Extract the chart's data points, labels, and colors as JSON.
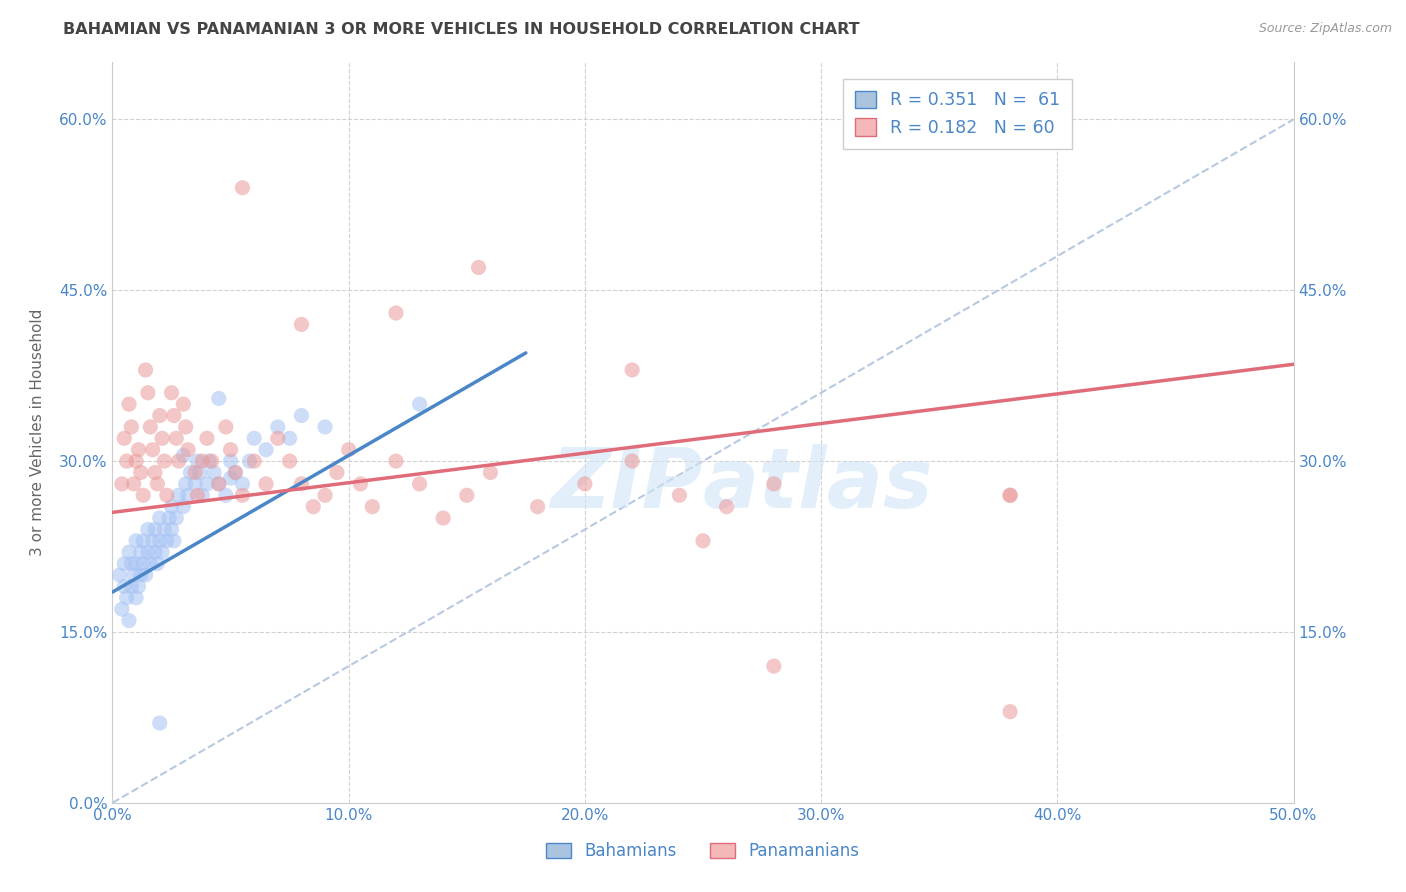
{
  "title": "BAHAMIAN VS PANAMANIAN 3 OR MORE VEHICLES IN HOUSEHOLD CORRELATION CHART",
  "source": "Source: ZipAtlas.com",
  "ylabel": "3 or more Vehicles in Household",
  "xlim": [
    0.0,
    0.5
  ],
  "ylim": [
    0.0,
    0.65
  ],
  "watermark": "ZIPatlas",
  "blue_color": "#a4c2f4",
  "pink_color": "#ea9999",
  "line_blue": "#4a86c8",
  "line_pink": "#e06c7a",
  "dashed_line_color": "#b0c4de",
  "title_color": "#444444",
  "axis_label_color": "#666666",
  "tick_color": "#4a86c8",
  "grid_color": "#cccccc",
  "bahamians_x": [
    0.003,
    0.004,
    0.005,
    0.005,
    0.006,
    0.007,
    0.007,
    0.008,
    0.008,
    0.009,
    0.01,
    0.01,
    0.01,
    0.011,
    0.012,
    0.012,
    0.013,
    0.013,
    0.014,
    0.015,
    0.015,
    0.016,
    0.017,
    0.018,
    0.018,
    0.019,
    0.02,
    0.02,
    0.021,
    0.022,
    0.023,
    0.024,
    0.025,
    0.025,
    0.026,
    0.027,
    0.028,
    0.03,
    0.031,
    0.032,
    0.033,
    0.035,
    0.036,
    0.037,
    0.038,
    0.04,
    0.041,
    0.043,
    0.045,
    0.048,
    0.05,
    0.052,
    0.055,
    0.058,
    0.06,
    0.065,
    0.07,
    0.075,
    0.08,
    0.09,
    0.13
  ],
  "bahamians_y": [
    0.2,
    0.17,
    0.19,
    0.21,
    0.18,
    0.16,
    0.22,
    0.19,
    0.21,
    0.2,
    0.18,
    0.21,
    0.23,
    0.19,
    0.2,
    0.22,
    0.21,
    0.23,
    0.2,
    0.22,
    0.24,
    0.21,
    0.23,
    0.22,
    0.24,
    0.21,
    0.23,
    0.25,
    0.22,
    0.24,
    0.23,
    0.25,
    0.24,
    0.26,
    0.23,
    0.25,
    0.27,
    0.26,
    0.28,
    0.27,
    0.29,
    0.28,
    0.3,
    0.29,
    0.27,
    0.28,
    0.3,
    0.29,
    0.28,
    0.27,
    0.3,
    0.29,
    0.28,
    0.3,
    0.32,
    0.31,
    0.33,
    0.32,
    0.34,
    0.33,
    0.35
  ],
  "panamanians_x": [
    0.004,
    0.005,
    0.006,
    0.007,
    0.008,
    0.009,
    0.01,
    0.011,
    0.012,
    0.013,
    0.014,
    0.015,
    0.016,
    0.017,
    0.018,
    0.019,
    0.02,
    0.021,
    0.022,
    0.023,
    0.025,
    0.026,
    0.027,
    0.028,
    0.03,
    0.031,
    0.032,
    0.035,
    0.036,
    0.038,
    0.04,
    0.042,
    0.045,
    0.048,
    0.05,
    0.052,
    0.055,
    0.06,
    0.065,
    0.07,
    0.075,
    0.08,
    0.085,
    0.09,
    0.095,
    0.1,
    0.105,
    0.11,
    0.12,
    0.13,
    0.14,
    0.15,
    0.16,
    0.18,
    0.2,
    0.22,
    0.24,
    0.26,
    0.28,
    0.38
  ],
  "panamanians_y": [
    0.28,
    0.32,
    0.3,
    0.35,
    0.33,
    0.28,
    0.3,
    0.31,
    0.29,
    0.27,
    0.38,
    0.36,
    0.33,
    0.31,
    0.29,
    0.28,
    0.34,
    0.32,
    0.3,
    0.27,
    0.36,
    0.34,
    0.32,
    0.3,
    0.35,
    0.33,
    0.31,
    0.29,
    0.27,
    0.3,
    0.32,
    0.3,
    0.28,
    0.33,
    0.31,
    0.29,
    0.27,
    0.3,
    0.28,
    0.32,
    0.3,
    0.28,
    0.26,
    0.27,
    0.29,
    0.31,
    0.28,
    0.26,
    0.3,
    0.28,
    0.25,
    0.27,
    0.29,
    0.26,
    0.28,
    0.3,
    0.27,
    0.26,
    0.28,
    0.27
  ],
  "blue_line_x": [
    0.0,
    0.175
  ],
  "blue_line_y": [
    0.185,
    0.395
  ],
  "pink_line_x": [
    0.0,
    0.5
  ],
  "pink_line_y": [
    0.255,
    0.385
  ],
  "dashed_line_x": [
    0.0,
    0.5
  ],
  "dashed_line_y": [
    0.0,
    0.6
  ],
  "extra_pink": [
    [
      0.055,
      0.54
    ],
    [
      0.155,
      0.47
    ],
    [
      0.12,
      0.43
    ],
    [
      0.08,
      0.42
    ],
    [
      0.22,
      0.38
    ],
    [
      0.38,
      0.27
    ],
    [
      0.25,
      0.23
    ],
    [
      0.28,
      0.12
    ],
    [
      0.38,
      0.08
    ]
  ],
  "extra_blue": [
    [
      0.045,
      0.355
    ],
    [
      0.03,
      0.305
    ],
    [
      0.05,
      0.285
    ],
    [
      0.02,
      0.07
    ]
  ]
}
